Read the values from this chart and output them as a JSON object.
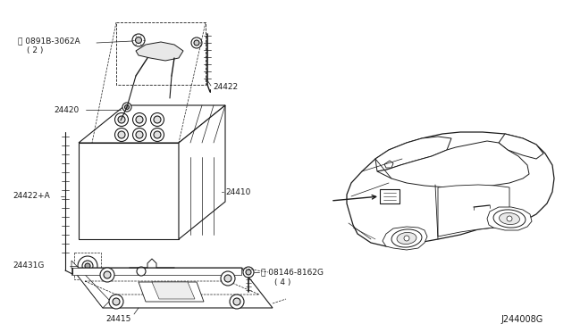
{
  "bg_color": "#ffffff",
  "line_color": "#1a1a1a",
  "diagram_id": "J244008G",
  "parts": {
    "24410": {
      "label": "24410"
    },
    "24420": {
      "label": "24420"
    },
    "24422": {
      "label": "24422"
    },
    "24422A": {
      "label": "24422+A"
    },
    "24431G": {
      "label": "24431G"
    },
    "24415": {
      "label": "24415"
    },
    "N0891B": {
      "label": "N0891B-3062A\n( 2 )"
    },
    "B08146": {
      "label": "B08146-8162G\n( 4 )"
    }
  }
}
